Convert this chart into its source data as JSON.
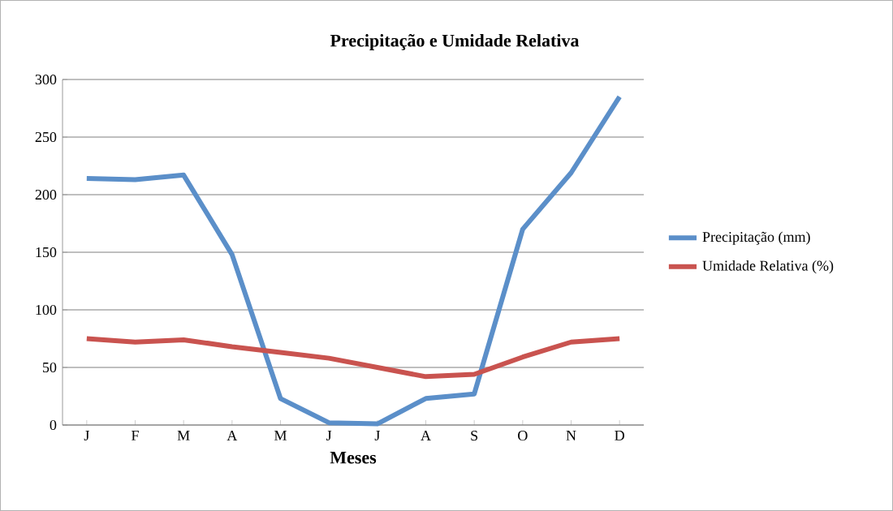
{
  "chart_data": {
    "type": "line",
    "title": "Precipitação e Umidade Relativa",
    "xlabel": "Meses",
    "categories": [
      "J",
      "F",
      "M",
      "A",
      "M",
      "J",
      "J",
      "A",
      "S",
      "O",
      "N",
      "D"
    ],
    "series": [
      {
        "name": "Precipitação (mm)",
        "color": "#5b8fc9",
        "values": [
          214,
          213,
          217,
          148,
          23,
          2,
          1,
          23,
          27,
          170,
          219,
          285
        ]
      },
      {
        "name": "Umidade Relativa (%)",
        "color": "#c9534f",
        "values": [
          75,
          72,
          74,
          68,
          63,
          58,
          50,
          42,
          44,
          59,
          72,
          75
        ]
      }
    ],
    "ylim": [
      0,
      300
    ],
    "yticks": [
      0,
      50,
      100,
      150,
      200,
      250,
      300
    ],
    "grid": "y",
    "legend": "right",
    "marker": "none",
    "line_style": "solid"
  }
}
